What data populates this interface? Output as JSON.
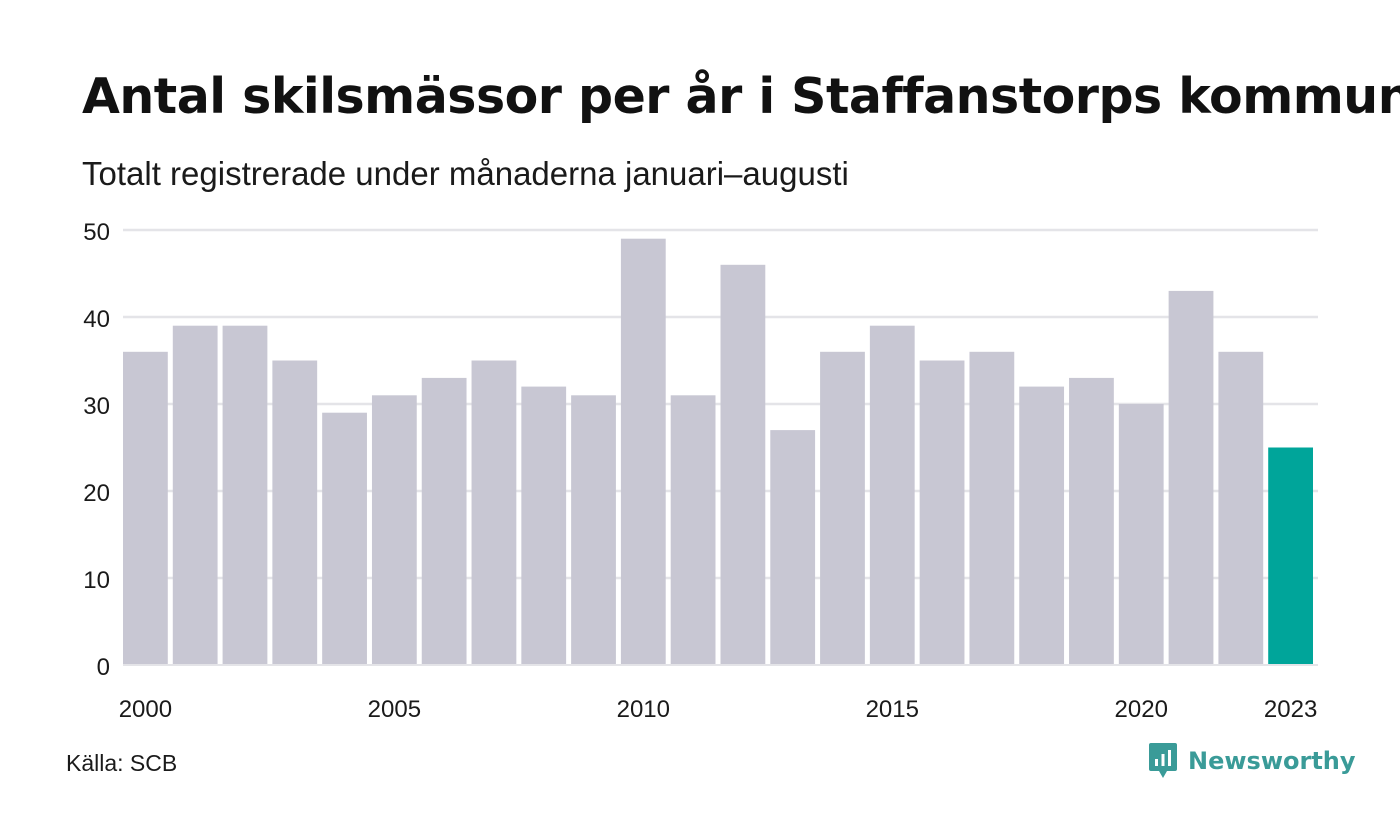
{
  "header": {
    "title": "Antal skilsmässor per år i Staffanstorps kommun",
    "subtitle": "Totalt registrerade under månaderna januari–augusti"
  },
  "footer": {
    "source": "Källa: SCB",
    "brand": "Newsworthy",
    "brand_icon": "newsworthy-logo-icon"
  },
  "colors": {
    "bar": "#c8c7d3",
    "highlight": "#00a59a",
    "grid": "#e4e4e8",
    "brand": "#3a9b98"
  },
  "chart_data": {
    "type": "bar",
    "categories": [
      "2000",
      "2001",
      "2002",
      "2003",
      "2004",
      "2005",
      "2006",
      "2007",
      "2008",
      "2009",
      "2010",
      "2011",
      "2012",
      "2013",
      "2014",
      "2015",
      "2016",
      "2017",
      "2018",
      "2019",
      "2020",
      "2021",
      "2022",
      "2023"
    ],
    "values": [
      36,
      39,
      39,
      35,
      29,
      31,
      33,
      35,
      32,
      31,
      49,
      31,
      46,
      27,
      36,
      39,
      35,
      36,
      32,
      33,
      30,
      43,
      36,
      25
    ],
    "highlight_index": 23,
    "x_tick_labels": [
      "2000",
      "2005",
      "2010",
      "2015",
      "2020",
      "2023"
    ],
    "y_ticks": [
      0,
      10,
      20,
      30,
      40,
      50
    ],
    "ylim": [
      0,
      50
    ],
    "title": "Antal skilsmässor per år i Staffanstorps kommun",
    "subtitle": "Totalt registrerade under månaderna januari–augusti",
    "xlabel": "",
    "ylabel": "",
    "grid": true
  }
}
